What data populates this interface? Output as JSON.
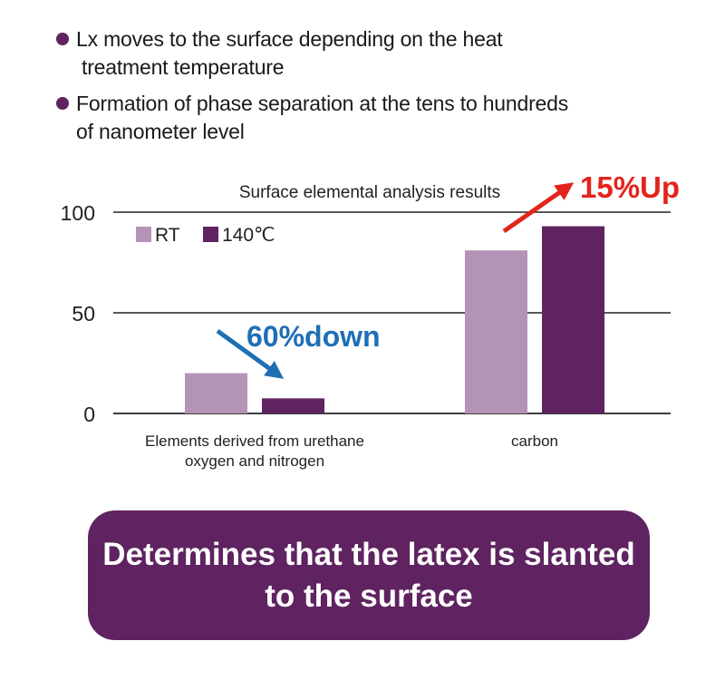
{
  "bullets": [
    {
      "line1": "Lx moves to the surface depending on the heat",
      "line2": "treatment temperature"
    },
    {
      "line1": "Formation of phase separation at the tens to hundreds",
      "line2": "of nanometer level"
    }
  ],
  "chart_data": {
    "type": "bar",
    "title": "Surface elemental analysis results",
    "categories": [
      [
        "Elements derived from urethane",
        "oxygen and nitrogen"
      ],
      [
        "carbon"
      ]
    ],
    "series": [
      {
        "name": "RT",
        "color": "#b394b6",
        "values": [
          20,
          81
        ]
      },
      {
        "name": "140℃",
        "color": "#5e2360",
        "values": [
          7.5,
          93
        ]
      }
    ],
    "ylim": [
      0,
      100
    ],
    "yticks": [
      0,
      50,
      100
    ],
    "grid": true,
    "legend": "top-left",
    "annotations": [
      {
        "text": "60%down",
        "color": "#1f6fb5"
      },
      {
        "text": "15%Up",
        "color": "#e3241b"
      }
    ]
  },
  "conclusion": {
    "line1": "Determines that the latex is slanted",
    "line2": "to the surface"
  }
}
